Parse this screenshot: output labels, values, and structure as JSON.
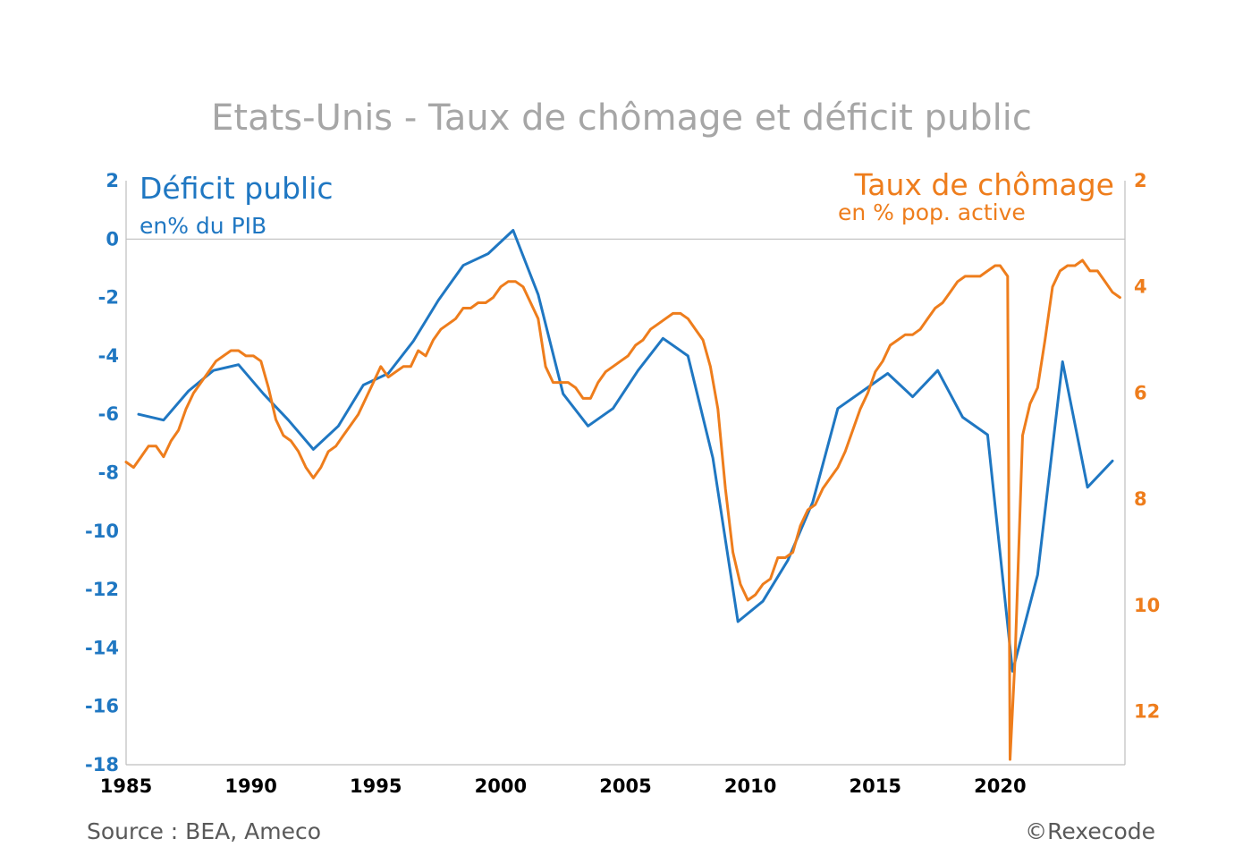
{
  "colors": {
    "deficit": "#1f77c2",
    "unemployment": "#ee7d1c",
    "title": "#a6a6a6",
    "axis": "#bfbfbf",
    "footer": "#595959"
  },
  "chart_data": {
    "type": "line",
    "title": "Etats-Unis - Taux de chômage et déficit public",
    "left_label": {
      "title": "Déficit public",
      "unit": "en% du PIB"
    },
    "right_label": {
      "title": "Taux de chômage",
      "unit": "en % pop. active"
    },
    "x_ticks": [
      "1985",
      "1990",
      "1995",
      "2000",
      "2005",
      "2010",
      "2015",
      "2020"
    ],
    "xlim": [
      1985,
      2025
    ],
    "y_left": {
      "ticks": [
        "2",
        "0",
        "-2",
        "-4",
        "-6",
        "-8",
        "-10",
        "-12",
        "-14",
        "-16",
        "-18"
      ],
      "ylim": [
        -18,
        2
      ]
    },
    "y_right": {
      "ticks": [
        "2",
        "4",
        "6",
        "8",
        "10",
        "12"
      ],
      "ylim": [
        2,
        13
      ],
      "inverted": true
    },
    "series": [
      {
        "key": "deficit",
        "axis": "left",
        "points": [
          [
            1985.5,
            -6.0
          ],
          [
            1986.5,
            -6.2
          ],
          [
            1987.5,
            -5.2
          ],
          [
            1988.5,
            -4.5
          ],
          [
            1989.5,
            -4.3
          ],
          [
            1990.5,
            -5.3
          ],
          [
            1991.5,
            -6.2
          ],
          [
            1992.5,
            -7.2
          ],
          [
            1993.5,
            -6.4
          ],
          [
            1994.5,
            -5.0
          ],
          [
            1995.5,
            -4.6
          ],
          [
            1996.5,
            -3.5
          ],
          [
            1997.5,
            -2.1
          ],
          [
            1998.5,
            -0.9
          ],
          [
            1999.5,
            -0.5
          ],
          [
            2000.5,
            0.3
          ],
          [
            2001.5,
            -1.9
          ],
          [
            2002.5,
            -5.3
          ],
          [
            2003.5,
            -6.4
          ],
          [
            2004.5,
            -5.8
          ],
          [
            2005.5,
            -4.5
          ],
          [
            2006.5,
            -3.4
          ],
          [
            2007.5,
            -4.0
          ],
          [
            2008.5,
            -7.5
          ],
          [
            2009.5,
            -13.1
          ],
          [
            2010.5,
            -12.4
          ],
          [
            2011.5,
            -11.0
          ],
          [
            2012.5,
            -9.0
          ],
          [
            2013.5,
            -5.8
          ],
          [
            2014.5,
            -5.2
          ],
          [
            2015.5,
            -4.6
          ],
          [
            2016.5,
            -5.4
          ],
          [
            2017.5,
            -4.5
          ],
          [
            2018.5,
            -6.1
          ],
          [
            2019.5,
            -6.7
          ],
          [
            2020.5,
            -14.8
          ],
          [
            2021.5,
            -11.5
          ],
          [
            2022.5,
            -4.2
          ],
          [
            2023.5,
            -8.5
          ],
          [
            2024.5,
            -7.6
          ]
        ]
      },
      {
        "key": "unemployment",
        "axis": "right",
        "points": [
          [
            1985.0,
            7.3
          ],
          [
            1985.3,
            7.4
          ],
          [
            1985.6,
            7.2
          ],
          [
            1985.9,
            7.0
          ],
          [
            1986.2,
            7.0
          ],
          [
            1986.5,
            7.2
          ],
          [
            1986.8,
            6.9
          ],
          [
            1987.1,
            6.7
          ],
          [
            1987.4,
            6.3
          ],
          [
            1987.7,
            6.0
          ],
          [
            1988.0,
            5.8
          ],
          [
            1988.3,
            5.6
          ],
          [
            1988.6,
            5.4
          ],
          [
            1988.9,
            5.3
          ],
          [
            1989.2,
            5.2
          ],
          [
            1989.5,
            5.2
          ],
          [
            1989.8,
            5.3
          ],
          [
            1990.1,
            5.3
          ],
          [
            1990.4,
            5.4
          ],
          [
            1990.7,
            5.9
          ],
          [
            1991.0,
            6.5
          ],
          [
            1991.3,
            6.8
          ],
          [
            1991.6,
            6.9
          ],
          [
            1991.9,
            7.1
          ],
          [
            1992.2,
            7.4
          ],
          [
            1992.5,
            7.6
          ],
          [
            1992.8,
            7.4
          ],
          [
            1993.1,
            7.1
          ],
          [
            1993.4,
            7.0
          ],
          [
            1993.7,
            6.8
          ],
          [
            1994.0,
            6.6
          ],
          [
            1994.3,
            6.4
          ],
          [
            1994.6,
            6.1
          ],
          [
            1994.9,
            5.8
          ],
          [
            1995.2,
            5.5
          ],
          [
            1995.5,
            5.7
          ],
          [
            1995.8,
            5.6
          ],
          [
            1996.1,
            5.5
          ],
          [
            1996.4,
            5.5
          ],
          [
            1996.7,
            5.2
          ],
          [
            1997.0,
            5.3
          ],
          [
            1997.3,
            5.0
          ],
          [
            1997.6,
            4.8
          ],
          [
            1997.9,
            4.7
          ],
          [
            1998.2,
            4.6
          ],
          [
            1998.5,
            4.4
          ],
          [
            1998.8,
            4.4
          ],
          [
            1999.1,
            4.3
          ],
          [
            1999.4,
            4.3
          ],
          [
            1999.7,
            4.2
          ],
          [
            2000.0,
            4.0
          ],
          [
            2000.3,
            3.9
          ],
          [
            2000.6,
            3.9
          ],
          [
            2000.9,
            4.0
          ],
          [
            2001.2,
            4.3
          ],
          [
            2001.5,
            4.6
          ],
          [
            2001.8,
            5.5
          ],
          [
            2002.1,
            5.8
          ],
          [
            2002.4,
            5.8
          ],
          [
            2002.7,
            5.8
          ],
          [
            2003.0,
            5.9
          ],
          [
            2003.3,
            6.1
          ],
          [
            2003.6,
            6.1
          ],
          [
            2003.9,
            5.8
          ],
          [
            2004.2,
            5.6
          ],
          [
            2004.5,
            5.5
          ],
          [
            2004.8,
            5.4
          ],
          [
            2005.1,
            5.3
          ],
          [
            2005.4,
            5.1
          ],
          [
            2005.7,
            5.0
          ],
          [
            2006.0,
            4.8
          ],
          [
            2006.3,
            4.7
          ],
          [
            2006.6,
            4.6
          ],
          [
            2006.9,
            4.5
          ],
          [
            2007.2,
            4.5
          ],
          [
            2007.5,
            4.6
          ],
          [
            2007.8,
            4.8
          ],
          [
            2008.1,
            5.0
          ],
          [
            2008.4,
            5.5
          ],
          [
            2008.7,
            6.3
          ],
          [
            2009.0,
            7.8
          ],
          [
            2009.3,
            9.0
          ],
          [
            2009.6,
            9.6
          ],
          [
            2009.9,
            9.9
          ],
          [
            2010.2,
            9.8
          ],
          [
            2010.5,
            9.6
          ],
          [
            2010.8,
            9.5
          ],
          [
            2011.1,
            9.1
          ],
          [
            2011.4,
            9.1
          ],
          [
            2011.7,
            9.0
          ],
          [
            2012.0,
            8.5
          ],
          [
            2012.3,
            8.2
          ],
          [
            2012.6,
            8.1
          ],
          [
            2012.9,
            7.8
          ],
          [
            2013.2,
            7.6
          ],
          [
            2013.5,
            7.4
          ],
          [
            2013.8,
            7.1
          ],
          [
            2014.1,
            6.7
          ],
          [
            2014.4,
            6.3
          ],
          [
            2014.7,
            6.0
          ],
          [
            2015.0,
            5.6
          ],
          [
            2015.3,
            5.4
          ],
          [
            2015.6,
            5.1
          ],
          [
            2015.9,
            5.0
          ],
          [
            2016.2,
            4.9
          ],
          [
            2016.5,
            4.9
          ],
          [
            2016.8,
            4.8
          ],
          [
            2017.1,
            4.6
          ],
          [
            2017.4,
            4.4
          ],
          [
            2017.7,
            4.3
          ],
          [
            2018.0,
            4.1
          ],
          [
            2018.3,
            3.9
          ],
          [
            2018.6,
            3.8
          ],
          [
            2018.9,
            3.8
          ],
          [
            2019.2,
            3.8
          ],
          [
            2019.5,
            3.7
          ],
          [
            2019.8,
            3.6
          ],
          [
            2020.0,
            3.6
          ],
          [
            2020.3,
            3.8
          ],
          [
            2020.4,
            12.9
          ],
          [
            2020.6,
            11.0
          ],
          [
            2020.9,
            6.8
          ],
          [
            2021.2,
            6.2
          ],
          [
            2021.5,
            5.9
          ],
          [
            2021.8,
            5.0
          ],
          [
            2022.1,
            4.0
          ],
          [
            2022.4,
            3.7
          ],
          [
            2022.7,
            3.6
          ],
          [
            2023.0,
            3.6
          ],
          [
            2023.3,
            3.5
          ],
          [
            2023.6,
            3.7
          ],
          [
            2023.9,
            3.7
          ],
          [
            2024.2,
            3.9
          ],
          [
            2024.5,
            4.1
          ],
          [
            2024.8,
            4.2
          ]
        ]
      }
    ]
  },
  "footer": {
    "source": "Source : BEA, Ameco",
    "copyright": "©Rexecode"
  }
}
